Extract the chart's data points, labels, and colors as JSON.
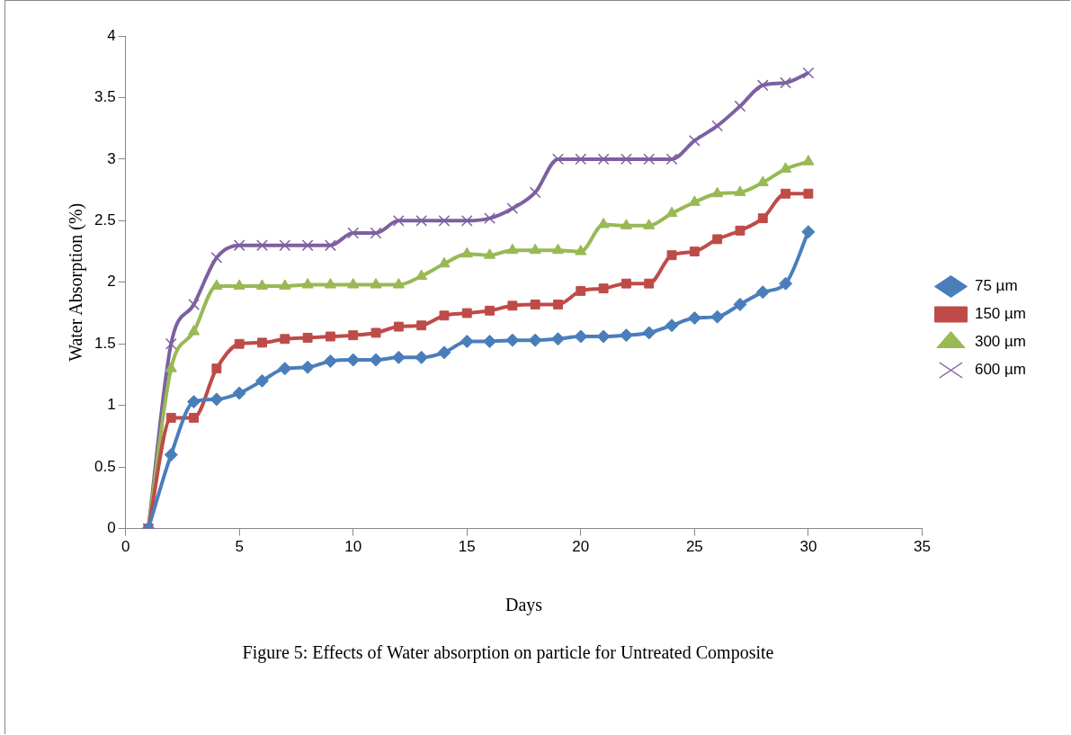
{
  "chart_data": {
    "type": "line",
    "title": "Figure 5: Effects of Water absorption on particle for Untreated Composite",
    "xlabel": "Days",
    "ylabel": "Water Absorption (%)",
    "x": [
      1,
      2,
      3,
      4,
      5,
      6,
      7,
      8,
      9,
      10,
      11,
      12,
      13,
      14,
      15,
      16,
      17,
      18,
      19,
      20,
      21,
      22,
      23,
      24,
      25,
      26,
      27,
      28,
      29,
      30
    ],
    "xlim": [
      0,
      35
    ],
    "xticks": [
      0,
      5,
      10,
      15,
      20,
      25,
      30,
      35
    ],
    "ylim": [
      0,
      4
    ],
    "yticks": [
      0,
      0.5,
      1,
      1.5,
      2,
      2.5,
      3,
      3.5,
      4
    ],
    "grid": false,
    "legend": "right",
    "series": [
      {
        "name": "75 µm",
        "color": "#4a7ebb",
        "marker": "diamond",
        "values": [
          0,
          0.6,
          1.03,
          1.05,
          1.1,
          1.2,
          1.3,
          1.31,
          1.36,
          1.37,
          1.37,
          1.39,
          1.39,
          1.43,
          1.52,
          1.52,
          1.53,
          1.53,
          1.54,
          1.56,
          1.56,
          1.57,
          1.59,
          1.65,
          1.71,
          1.72,
          1.82,
          1.92,
          1.99,
          2.41
        ]
      },
      {
        "name": "150 µm",
        "color": "#be4b48",
        "marker": "square",
        "values": [
          0,
          0.9,
          0.9,
          1.3,
          1.5,
          1.51,
          1.54,
          1.55,
          1.56,
          1.57,
          1.59,
          1.64,
          1.65,
          1.73,
          1.75,
          1.77,
          1.81,
          1.82,
          1.82,
          1.93,
          1.95,
          1.99,
          1.99,
          2.22,
          2.25,
          2.35,
          2.42,
          2.52,
          2.72,
          2.72
        ]
      },
      {
        "name": "300 µm",
        "color": "#98b954",
        "marker": "triangle",
        "values": [
          0,
          1.3,
          1.6,
          1.97,
          1.97,
          1.97,
          1.97,
          1.98,
          1.98,
          1.98,
          1.98,
          1.98,
          2.05,
          2.15,
          2.23,
          2.22,
          2.26,
          2.26,
          2.26,
          2.25,
          2.47,
          2.46,
          2.46,
          2.56,
          2.65,
          2.72,
          2.73,
          2.81,
          2.92,
          2.98
        ]
      },
      {
        "name": "600 µm",
        "color": "#7d60a0",
        "marker": "cross",
        "values": [
          0,
          1.5,
          1.82,
          2.2,
          2.3,
          2.3,
          2.3,
          2.3,
          2.3,
          2.4,
          2.4,
          2.5,
          2.5,
          2.5,
          2.5,
          2.52,
          2.6,
          2.73,
          3.0,
          3.0,
          3.0,
          3.0,
          3.0,
          3.0,
          3.15,
          3.27,
          3.43,
          3.6,
          3.62,
          3.7
        ]
      }
    ]
  }
}
